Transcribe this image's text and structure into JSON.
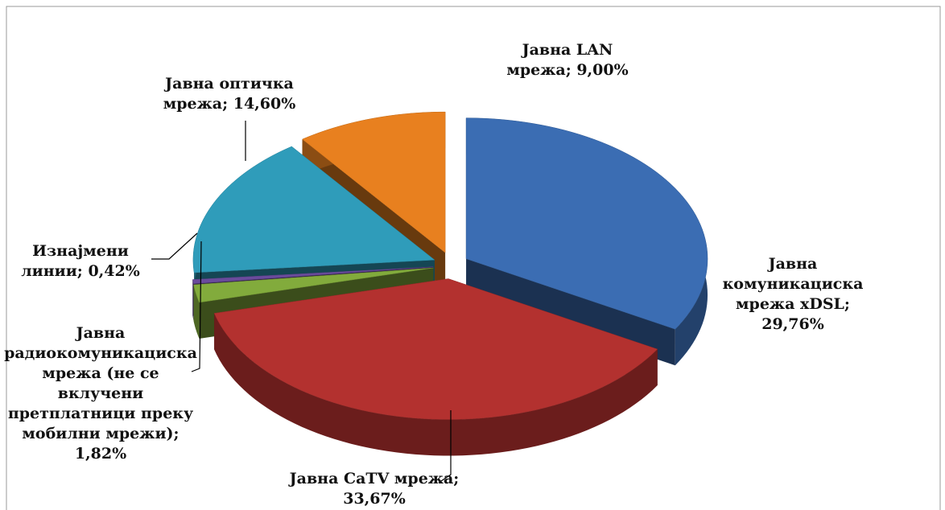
{
  "chart_data": {
    "type": "pie3d",
    "categories": [
      "Јавна комуникациска мрежа xDSL",
      "Јавна CaTV мрежа",
      "Јавна радиокомуникациска мрежа (не се вклучени претплатници преку мобилни мрежи)",
      "Изнајмени линии",
      "Јавна оптичка мрежа",
      "Јавна LAN мрежа"
    ],
    "values": [
      29.76,
      33.67,
      1.82,
      0.42,
      14.6,
      9.0
    ],
    "value_labels": [
      "29,76%",
      "33,67%",
      "1,82%",
      "0,42%",
      "14,60%",
      "9,00%"
    ],
    "label_separator": "; ",
    "colors": [
      "#3b6db3",
      "#b3312f",
      "#82ab3c",
      "#6a4b9c",
      "#2f9cba",
      "#e8801f"
    ]
  }
}
